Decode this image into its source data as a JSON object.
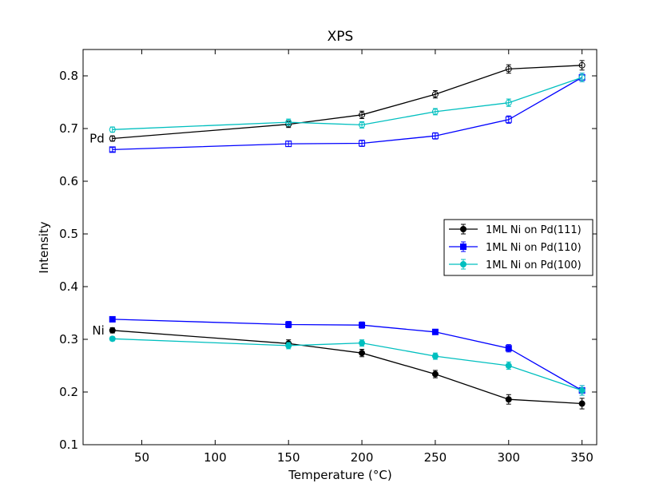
{
  "chart_data": {
    "type": "line",
    "title": "XPS",
    "xlabel": "Temperature (°C)",
    "ylabel": "Intensity",
    "xlim": [
      10,
      360
    ],
    "ylim": [
      0.1,
      0.85
    ],
    "xticks": [
      50,
      100,
      150,
      200,
      250,
      300,
      350
    ],
    "yticks": [
      0.1,
      0.2,
      0.3,
      0.4,
      0.5,
      0.6,
      0.7,
      0.8
    ],
    "x": [
      30,
      150,
      200,
      250,
      300,
      350
    ],
    "grid": false,
    "legend_position": "center-right",
    "annotations": [
      {
        "text": "Pd",
        "x": 30,
        "y": 0.681
      },
      {
        "text": "Ni",
        "x": 30,
        "y": 0.317
      }
    ],
    "series": [
      {
        "name": "1ML Ni on Pd(111)",
        "group": "Ni",
        "color": "#000000",
        "marker": "circle",
        "filled": true,
        "values": [
          0.317,
          0.292,
          0.274,
          0.234,
          0.186,
          0.178
        ],
        "errors": [
          0.005,
          0.007,
          0.007,
          0.007,
          0.009,
          0.01
        ]
      },
      {
        "name": "1ML Ni on Pd(110)",
        "group": "Ni",
        "color": "#0000ff",
        "marker": "square",
        "filled": true,
        "values": [
          0.338,
          0.328,
          0.327,
          0.314,
          0.283,
          0.203
        ],
        "errors": [
          0.004,
          0.006,
          0.006,
          0.005,
          0.007,
          0.009
        ]
      },
      {
        "name": "1ML Ni on Pd(100)",
        "group": "Ni",
        "color": "#00bfbf",
        "marker": "circle",
        "filled": true,
        "values": [
          0.301,
          0.288,
          0.293,
          0.268,
          0.25,
          0.203
        ],
        "errors": [
          0.004,
          0.006,
          0.006,
          0.006,
          0.007,
          0.009
        ]
      },
      {
        "name": "1ML Ni on Pd(111)",
        "group": "Pd",
        "color": "#000000",
        "marker": "circle",
        "filled": false,
        "values": [
          0.681,
          0.708,
          0.726,
          0.765,
          0.813,
          0.82
        ],
        "errors": [
          0.005,
          0.006,
          0.007,
          0.007,
          0.008,
          0.009
        ]
      },
      {
        "name": "1ML Ni on Pd(110)",
        "group": "Pd",
        "color": "#0000ff",
        "marker": "square",
        "filled": false,
        "values": [
          0.66,
          0.671,
          0.672,
          0.686,
          0.717,
          0.797
        ],
        "errors": [
          0.004,
          0.005,
          0.006,
          0.006,
          0.007,
          0.008
        ]
      },
      {
        "name": "1ML Ni on Pd(100)",
        "group": "Pd",
        "color": "#00bfbf",
        "marker": "circle",
        "filled": false,
        "values": [
          0.698,
          0.712,
          0.707,
          0.732,
          0.749,
          0.797
        ],
        "errors": [
          0.005,
          0.006,
          0.006,
          0.006,
          0.007,
          0.008
        ]
      }
    ],
    "legend": [
      {
        "label": "1ML Ni on Pd(111)",
        "color": "#000000",
        "marker": "circle"
      },
      {
        "label": "1ML Ni on Pd(110)",
        "color": "#0000ff",
        "marker": "square"
      },
      {
        "label": "1ML Ni on Pd(100)",
        "color": "#00bfbf",
        "marker": "circle"
      }
    ]
  }
}
